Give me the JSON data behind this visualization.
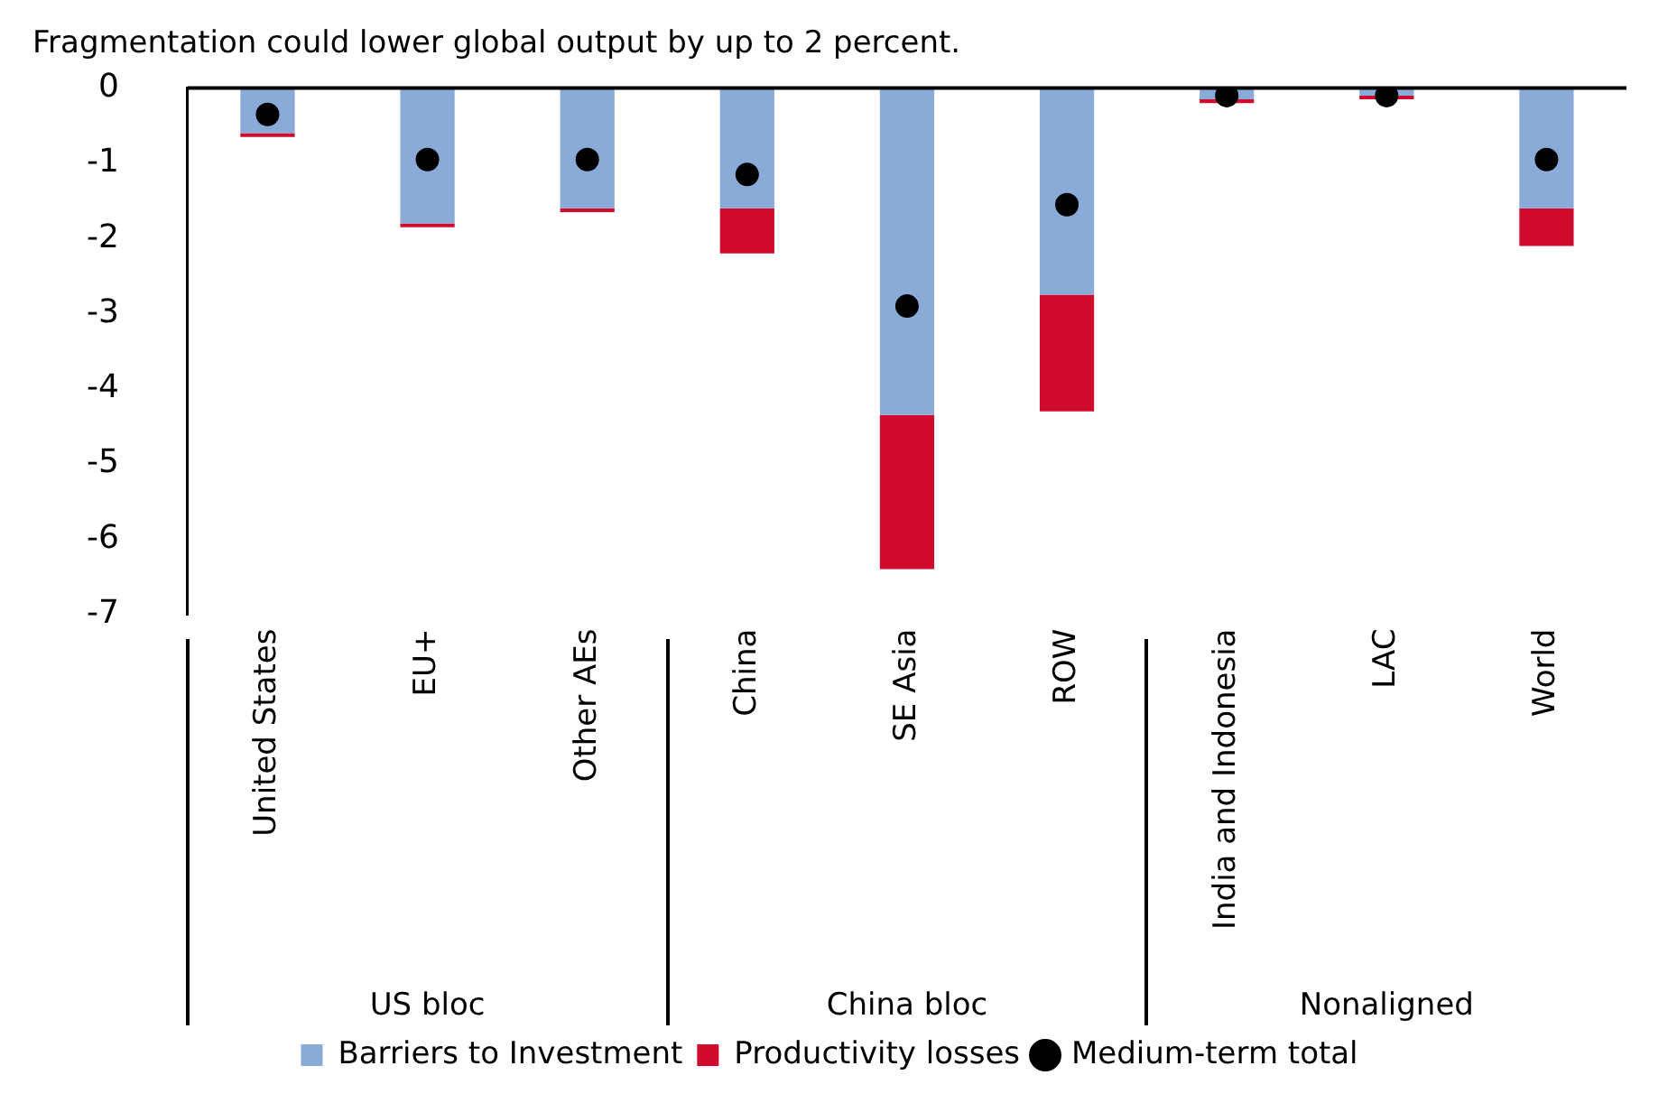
{
  "chart_data": {
    "type": "bar",
    "title": "Fragmentation could lower global output by up to 2 percent.",
    "categories": [
      "United States",
      "EU+",
      "Other AEs",
      "China",
      "SE Asia",
      "ROW",
      "India and Indonesia",
      "LAC",
      "World"
    ],
    "stacked": true,
    "series": [
      {
        "name": "Barriers to Investment",
        "color": "#8aaad8",
        "values": [
          -0.6,
          -1.8,
          -1.6,
          -1.6,
          -4.35,
          -2.75,
          -0.15,
          -0.1,
          -1.6
        ]
      },
      {
        "name": "Productivity losses",
        "color": "#cf0a2c",
        "values": [
          -0.05,
          -0.05,
          -0.05,
          -0.6,
          -2.05,
          -1.55,
          -0.05,
          -0.05,
          -0.5
        ]
      },
      {
        "name": "Medium-term total",
        "type": "scatter",
        "marker": "circle",
        "color": "#000000",
        "x": [
          "United States",
          "EU+",
          "Other AEs",
          "China",
          "SE Asia",
          "ROW",
          "India and Indonesia",
          "LAC",
          "World"
        ],
        "values": [
          -0.35,
          -0.95,
          -0.95,
          -1.15,
          -2.9,
          -1.55,
          -0.1,
          -0.1,
          -0.95
        ]
      }
    ],
    "ylim": [
      -7,
      0
    ],
    "yticks": [
      0,
      -1,
      -2,
      -3,
      -4,
      -5,
      -6,
      -7
    ],
    "ref_lines": [
      {
        "axis": "y",
        "value": 0,
        "color": "#000000"
      }
    ],
    "annotations": [
      "US bloc",
      "China bloc",
      "Nonaligned"
    ],
    "grid": false,
    "legend": "bottom"
  }
}
